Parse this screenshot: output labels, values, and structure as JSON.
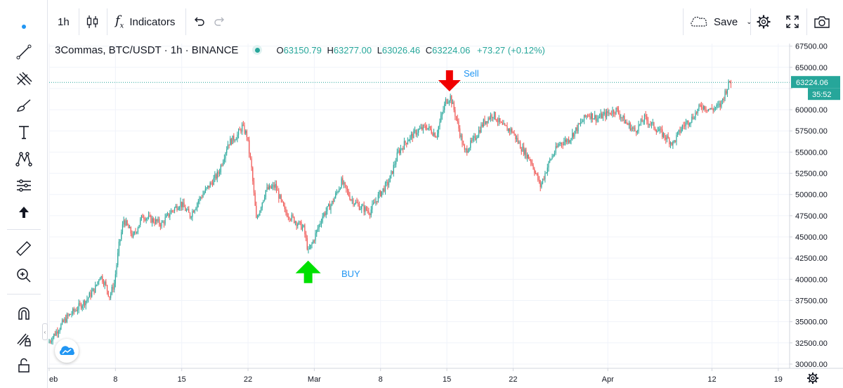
{
  "toolbar": {
    "interval": "1h",
    "indicators_label": "Indicators",
    "save_label": "Save"
  },
  "legend": {
    "title": "3Commas, BTC/USDT · 1h · BINANCE",
    "open_label": "O",
    "open": "63150.79",
    "high_label": "H",
    "high": "63277.00",
    "low_label": "L",
    "low": "63026.46",
    "close_label": "C",
    "close": "63224.06",
    "change": "+73.27 (+0.12%)"
  },
  "price_badge": {
    "price": "63224.06",
    "countdown": "35:52"
  },
  "annotations": {
    "buy_label": "BUY",
    "sell_label": "Sell"
  },
  "colors": {
    "up": "#26a69a",
    "down": "#ef5350",
    "buy_arrow": "#00e000",
    "sell_arrow": "#f00000",
    "label": "#2196f3",
    "price_line": "#26a69a"
  },
  "chart_data": {
    "type": "candlestick",
    "title": "",
    "xlabel": "",
    "ylabel": "",
    "ylim": [
      29500,
      67800
    ],
    "y_ticks": [
      30000,
      32500,
      35000,
      37500,
      40000,
      42500,
      45000,
      47500,
      50000,
      52500,
      55000,
      57500,
      60000,
      62500,
      65000,
      67500
    ],
    "y_tick_labels": [
      "30000.00",
      "32500.00",
      "35000.00",
      "37500.00",
      "40000.00",
      "42500.00",
      "45000.00",
      "47500.00",
      "50000.00",
      "52500.00",
      "55000.00",
      "57500.00",
      "60000.00",
      "",
      "65000.00",
      "67500.00"
    ],
    "x_ticks": [
      {
        "label": "eb",
        "day": 1
      },
      {
        "label": "8",
        "day": 8
      },
      {
        "label": "15",
        "day": 15
      },
      {
        "label": "22",
        "day": 22
      },
      {
        "label": "Mar",
        "day": 29
      },
      {
        "label": "8",
        "day": 36
      },
      {
        "label": "15",
        "day": 43
      },
      {
        "label": "22",
        "day": 50
      },
      {
        "label": "Apr",
        "day": 60
      },
      {
        "label": "12",
        "day": 71
      },
      {
        "label": "19",
        "day": 78
      }
    ],
    "x_range_days": [
      1,
      79.2
    ],
    "price_path": [
      [
        1,
        32500
      ],
      [
        2,
        34000
      ],
      [
        3,
        35500
      ],
      [
        4,
        36500
      ],
      [
        5,
        37500
      ],
      [
        6,
        39000
      ],
      [
        6.5,
        40500
      ],
      [
        7,
        39500
      ],
      [
        7.5,
        38000
      ],
      [
        8,
        39500
      ],
      [
        8.5,
        44000
      ],
      [
        9,
        47000
      ],
      [
        10,
        45000
      ],
      [
        11,
        47500
      ],
      [
        12,
        47000
      ],
      [
        13,
        46500
      ],
      [
        14,
        48000
      ],
      [
        15,
        49000
      ],
      [
        16,
        47500
      ],
      [
        17,
        49500
      ],
      [
        18,
        51000
      ],
      [
        19,
        52500
      ],
      [
        20,
        56000
      ],
      [
        21,
        57000
      ],
      [
        21.5,
        58000
      ],
      [
        22,
        57000
      ],
      [
        22.5,
        53000
      ],
      [
        23,
        47000
      ],
      [
        24,
        50500
      ],
      [
        25,
        51000
      ],
      [
        26,
        48000
      ],
      [
        27,
        47000
      ],
      [
        28,
        46000
      ],
      [
        28.5,
        43200
      ],
      [
        29,
        44500
      ],
      [
        30,
        47500
      ],
      [
        31,
        49000
      ],
      [
        32,
        51500
      ],
      [
        33,
        49500
      ],
      [
        34,
        48500
      ],
      [
        35,
        48000
      ],
      [
        36,
        50000
      ],
      [
        37,
        51500
      ],
      [
        38,
        55000
      ],
      [
        39,
        56500
      ],
      [
        40,
        57500
      ],
      [
        41,
        58000
      ],
      [
        42,
        57000
      ],
      [
        43,
        61000
      ],
      [
        43.5,
        61500
      ],
      [
        44,
        59500
      ],
      [
        45,
        55000
      ],
      [
        46,
        56500
      ],
      [
        47,
        58500
      ],
      [
        48,
        59500
      ],
      [
        49,
        58000
      ],
      [
        50,
        57500
      ],
      [
        51,
        55500
      ],
      [
        52,
        54000
      ],
      [
        53,
        51000
      ],
      [
        54,
        54000
      ],
      [
        55,
        56000
      ],
      [
        56,
        56500
      ],
      [
        57,
        58000
      ],
      [
        58,
        59500
      ],
      [
        59,
        59000
      ],
      [
        60,
        59500
      ],
      [
        61,
        60000
      ],
      [
        62,
        58500
      ],
      [
        63,
        57500
      ],
      [
        64,
        59000
      ],
      [
        65,
        58000
      ],
      [
        66,
        57000
      ],
      [
        67,
        56000
      ],
      [
        68,
        58000
      ],
      [
        69,
        59000
      ],
      [
        70,
        60500
      ],
      [
        71,
        60000
      ],
      [
        72,
        60500
      ],
      [
        72.5,
        62000
      ],
      [
        73,
        63300
      ]
    ],
    "buy_marker_day": 28.5,
    "buy_marker_price": 43200,
    "sell_marker_day": 43.5,
    "sell_marker_price": 61500,
    "last_price": 63224.06
  }
}
